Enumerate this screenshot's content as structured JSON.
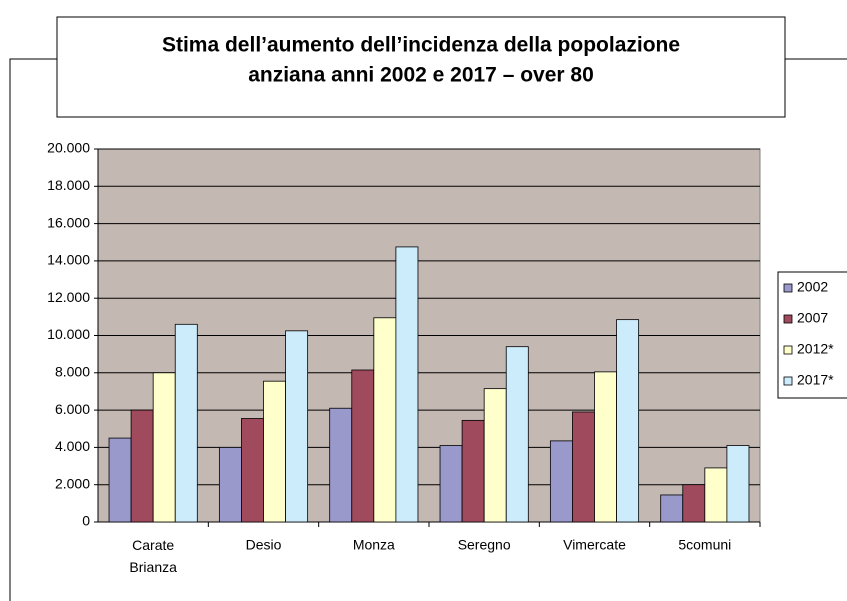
{
  "chart_data": {
    "type": "bar",
    "title": [
      "Stima dell’aumento dell’incidenza della popolazione",
      "anziana anni 2002 e 2017 – over 80"
    ],
    "categories": [
      "Carate Brianza",
      "Desio",
      "Monza",
      "Seregno",
      "Vimercate",
      "5comuni"
    ],
    "series": [
      {
        "name": "2002",
        "color": "#9999cc",
        "values": [
          4500,
          4000,
          6100,
          4100,
          4350,
          1450
        ]
      },
      {
        "name": "2007",
        "color": "#a04a5e",
        "values": [
          6000,
          5550,
          8150,
          5450,
          5900,
          2000
        ]
      },
      {
        "name": "2012*",
        "color": "#ffffcc",
        "values": [
          8000,
          7550,
          10950,
          7150,
          8050,
          2900
        ]
      },
      {
        "name": "2017*",
        "color": "#ccecfc",
        "values": [
          10600,
          10250,
          14750,
          9400,
          10850,
          4100
        ]
      }
    ],
    "ylim": [
      0,
      20000
    ],
    "yticks": [
      0,
      {
        "value": 2000,
        "label": "2.000"
      },
      {
        "value": 4000,
        "label": "4.000"
      },
      {
        "value": 6000,
        "label": "6.000"
      },
      {
        "value": 8000,
        "label": "8.000"
      },
      {
        "value": 10000,
        "label": "10.000"
      },
      {
        "value": 12000,
        "label": "12.000"
      },
      {
        "value": 14000,
        "label": "14.000"
      },
      {
        "value": 16000,
        "label": "16.000"
      },
      {
        "value": 18000,
        "label": "18.000"
      },
      {
        "value": 20000,
        "label": "20.000"
      }
    ],
    "grid": true,
    "legend": "right"
  }
}
